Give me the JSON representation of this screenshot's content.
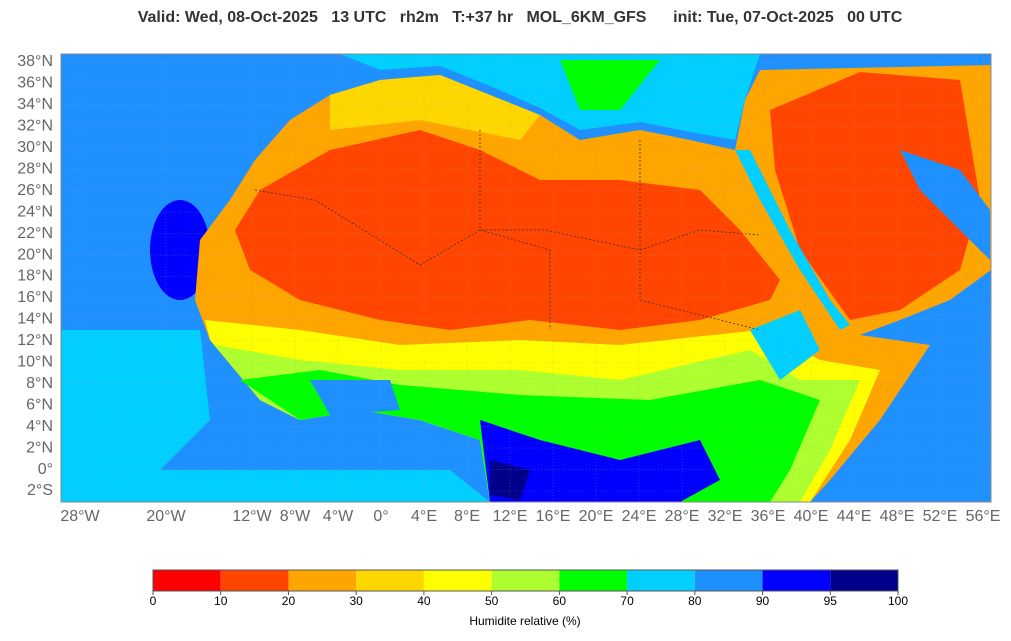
{
  "title": "Valid: Wed, 08-Oct-2025   13 UTC   rh2m   T:+37 hr   MOL_6KM_GFS      init: Tue, 07-Oct-2025   00 UTC",
  "lat_ticks": [
    {
      "value": 38,
      "label": "38°N"
    },
    {
      "value": 36,
      "label": "36°N"
    },
    {
      "value": 34,
      "label": "34°N"
    },
    {
      "value": 32,
      "label": "32°N"
    },
    {
      "value": 30,
      "label": "30°N"
    },
    {
      "value": 28,
      "label": "28°N"
    },
    {
      "value": 26,
      "label": "26°N"
    },
    {
      "value": 24,
      "label": "24°N"
    },
    {
      "value": 22,
      "label": "22°N"
    },
    {
      "value": 20,
      "label": "20°N"
    },
    {
      "value": 18,
      "label": "18°N"
    },
    {
      "value": 16,
      "label": "16°N"
    },
    {
      "value": 14,
      "label": "14°N"
    },
    {
      "value": 12,
      "label": "12°N"
    },
    {
      "value": 10,
      "label": "10°N"
    },
    {
      "value": 8,
      "label": "8°N"
    },
    {
      "value": 6,
      "label": "6°N"
    },
    {
      "value": 4,
      "label": "4°N"
    },
    {
      "value": 2,
      "label": "2°N"
    },
    {
      "value": 0,
      "label": "0°"
    },
    {
      "value": -2,
      "label": "2°S"
    }
  ],
  "lon_ticks": [
    {
      "value": -28,
      "label": "28°W"
    },
    {
      "value": -20,
      "label": "20°W"
    },
    {
      "value": -12,
      "label": "12°W"
    },
    {
      "value": -8,
      "label": "8°W"
    },
    {
      "value": -4,
      "label": "4°W"
    },
    {
      "value": 0,
      "label": "0°"
    },
    {
      "value": 4,
      "label": "4°E"
    },
    {
      "value": 8,
      "label": "8°E"
    },
    {
      "value": 12,
      "label": "12°E"
    },
    {
      "value": 16,
      "label": "16°E"
    },
    {
      "value": 20,
      "label": "20°E"
    },
    {
      "value": 24,
      "label": "24°E"
    },
    {
      "value": 28,
      "label": "28°E"
    },
    {
      "value": 32,
      "label": "32°E"
    },
    {
      "value": 36,
      "label": "36°E"
    },
    {
      "value": 40,
      "label": "40°E"
    },
    {
      "value": 44,
      "label": "44°E"
    },
    {
      "value": 48,
      "label": "48°E"
    },
    {
      "value": 52,
      "label": "52°E"
    },
    {
      "value": 56,
      "label": "56°E"
    }
  ],
  "colorbar": {
    "label": "Humidite relative (%)",
    "ticks": [
      0,
      10,
      20,
      30,
      40,
      50,
      60,
      70,
      80,
      90,
      95,
      100
    ],
    "colors": [
      "#ff0000",
      "#ff4500",
      "#ffa500",
      "#ffd700",
      "#ffff00",
      "#adff2f",
      "#00ff00",
      "#00cfff",
      "#1e90ff",
      "#0000ff",
      "#00008b"
    ]
  }
}
